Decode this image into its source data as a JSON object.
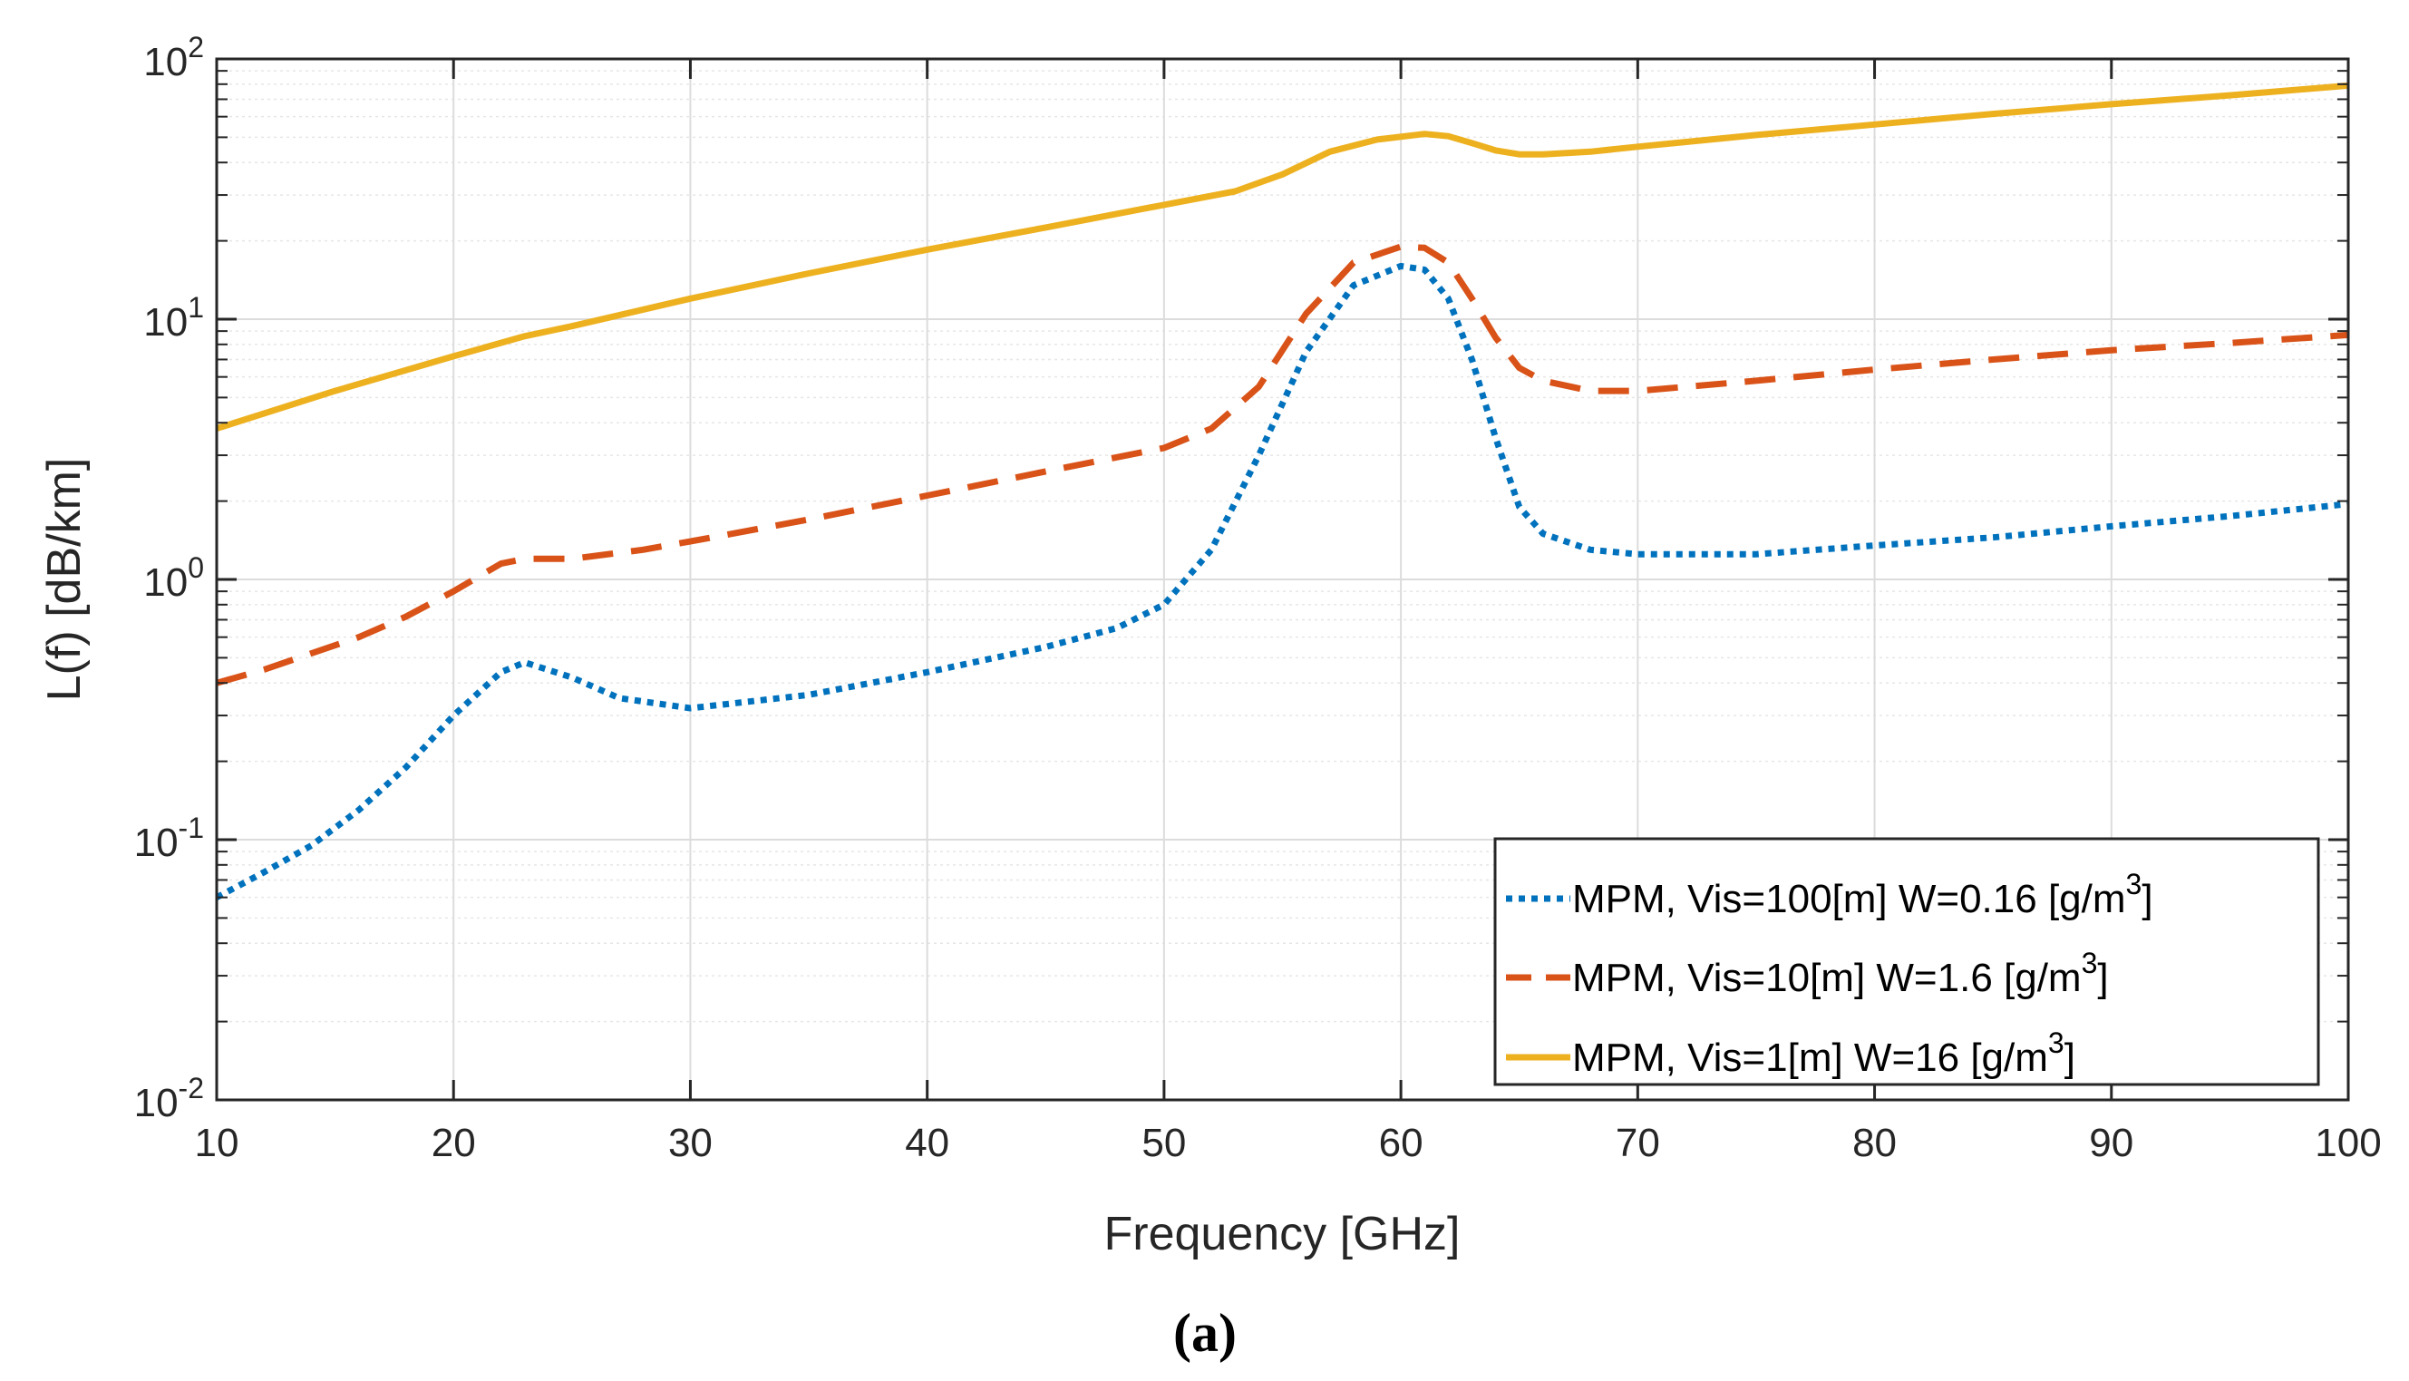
{
  "chart_data": {
    "type": "line",
    "title": "",
    "xlabel": "Frequency [GHz]",
    "ylabel": "L(f) [dB/km]",
    "yscale": "log",
    "xlim": [
      10,
      100
    ],
    "ylim": [
      0.01,
      100
    ],
    "grid": true,
    "minor_grid": true,
    "legend_location": "bottom-right",
    "caption": "(a)",
    "x_ticks": [
      10,
      20,
      30,
      40,
      50,
      60,
      70,
      80,
      90,
      100
    ],
    "x_tick_labels": [
      "10",
      "20",
      "30",
      "40",
      "50",
      "60",
      "70",
      "80",
      "90",
      "100"
    ],
    "y_ticks": [
      0.01,
      0.1,
      1,
      10,
      100
    ],
    "y_tick_labels": [
      {
        "base": "10",
        "exp": "-2"
      },
      {
        "base": "10",
        "exp": "-1"
      },
      {
        "base": "10",
        "exp": "0"
      },
      {
        "base": "10",
        "exp": "1"
      },
      {
        "base": "10",
        "exp": "2"
      }
    ],
    "series": [
      {
        "name": "MPM, Vis=100[m] W=0.16 [g/m3]",
        "legend": {
          "main": "MPM, Vis=100[m] W=0.16 [g/m",
          "sup": "3",
          "tail": "]"
        },
        "color": "#0072BD",
        "style": "dotted",
        "x": [
          10,
          12,
          14,
          16,
          18,
          20,
          22,
          23,
          25,
          27,
          30,
          35,
          40,
          45,
          48,
          50,
          52,
          54,
          56,
          58,
          60,
          61,
          62,
          63,
          64,
          65,
          66,
          68,
          70,
          75,
          80,
          85,
          90,
          95,
          100
        ],
        "y": [
          0.06,
          0.075,
          0.095,
          0.13,
          0.19,
          0.3,
          0.44,
          0.48,
          0.42,
          0.35,
          0.32,
          0.36,
          0.44,
          0.55,
          0.65,
          0.8,
          1.3,
          3.0,
          7.5,
          13.5,
          16.0,
          15.5,
          12.0,
          7.0,
          3.5,
          1.9,
          1.5,
          1.3,
          1.25,
          1.25,
          1.35,
          1.45,
          1.6,
          1.75,
          1.95
        ]
      },
      {
        "name": "MPM, Vis=10[m]  W=1.6 [g/m3]",
        "legend": {
          "main": "MPM, Vis=10[m]  W=1.6 [g/m",
          "sup": "3",
          "tail": "]"
        },
        "color": "#D95319",
        "style": "dashed",
        "x": [
          10,
          12,
          14,
          16,
          18,
          20,
          22,
          23,
          25,
          28,
          30,
          35,
          40,
          45,
          50,
          52,
          54,
          56,
          58,
          60,
          61,
          62,
          63,
          64,
          65,
          66,
          68,
          70,
          75,
          80,
          85,
          90,
          95,
          100
        ],
        "y": [
          0.4,
          0.45,
          0.52,
          0.6,
          0.72,
          0.9,
          1.15,
          1.2,
          1.2,
          1.3,
          1.4,
          1.7,
          2.1,
          2.6,
          3.2,
          3.8,
          5.5,
          10.5,
          16.5,
          19.0,
          18.8,
          16.5,
          12.0,
          8.5,
          6.5,
          5.8,
          5.3,
          5.3,
          5.8,
          6.4,
          7.0,
          7.6,
          8.1,
          8.7
        ]
      },
      {
        "name": "MPM, Vis=1[m]   W=16 [g/m3]",
        "legend": {
          "main": "MPM, Vis=1[m]   W=16 [g/m",
          "sup": "3",
          "tail": "]"
        },
        "color": "#EDB120",
        "style": "solid",
        "x": [
          10,
          15,
          20,
          23,
          25,
          30,
          35,
          40,
          45,
          50,
          53,
          55,
          57,
          59,
          61,
          62,
          63,
          64,
          65,
          66,
          68,
          70,
          75,
          80,
          85,
          90,
          95,
          100
        ],
        "y": [
          3.8,
          5.3,
          7.2,
          8.6,
          9.4,
          12.0,
          15.0,
          18.5,
          22.5,
          27.5,
          31.0,
          36.0,
          44.0,
          49.0,
          51.5,
          50.5,
          47.5,
          44.5,
          43.0,
          43.0,
          44.0,
          46.0,
          51.0,
          56.0,
          61.5,
          67.0,
          72.5,
          79.0
        ]
      }
    ]
  }
}
